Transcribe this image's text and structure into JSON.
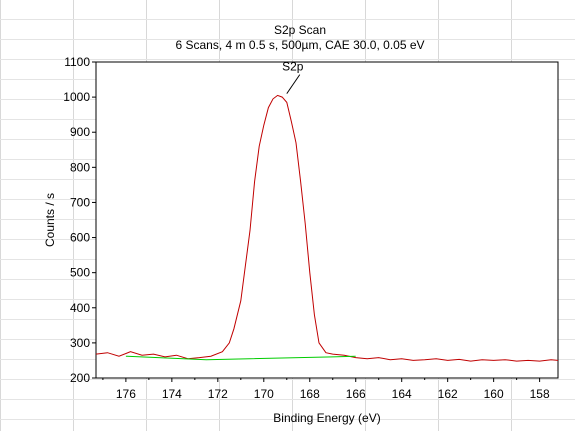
{
  "chart_data": {
    "type": "line",
    "title": "S2p Scan",
    "subtitle": "6 Scans,  4 m 0.5 s,  500µm,  CAE 30.0,  0.05 eV",
    "xlabel": "Binding Energy (eV)",
    "ylabel": "Counts / s",
    "xlim": [
      177.3,
      157.2
    ],
    "ylim": [
      200,
      1100
    ],
    "x_reversed": true,
    "grid": false,
    "xticks": [
      176,
      174,
      172,
      170,
      168,
      166,
      164,
      162,
      160,
      158
    ],
    "yticks": [
      200,
      300,
      400,
      500,
      600,
      700,
      800,
      900,
      1000,
      1100
    ],
    "peak_annotation": {
      "label": "S2p",
      "x": 169.0,
      "y": 1010
    },
    "series": [
      {
        "color": "#c00000",
        "x": [
          177.3,
          176.8,
          176.3,
          175.8,
          175.3,
          174.8,
          174.3,
          173.8,
          173.3,
          172.8,
          172.3,
          171.8,
          171.5,
          171.3,
          171.0,
          170.8,
          170.6,
          170.4,
          170.2,
          170.0,
          169.8,
          169.6,
          169.4,
          169.2,
          169.0,
          168.8,
          168.6,
          168.4,
          168.2,
          168.0,
          167.8,
          167.6,
          167.3,
          167.0,
          166.5,
          166.0,
          165.5,
          165.0,
          164.5,
          164.0,
          163.5,
          163.0,
          162.5,
          162.0,
          161.5,
          161.0,
          160.5,
          160.0,
          159.5,
          159.0,
          158.5,
          158.0,
          157.5,
          157.2
        ],
        "values": [
          268,
          272,
          262,
          275,
          265,
          268,
          260,
          265,
          255,
          258,
          262,
          275,
          300,
          340,
          420,
          520,
          620,
          760,
          860,
          920,
          970,
          995,
          1005,
          1000,
          985,
          930,
          870,
          760,
          640,
          500,
          380,
          300,
          272,
          268,
          265,
          258,
          255,
          258,
          252,
          255,
          250,
          252,
          255,
          250,
          253,
          248,
          252,
          250,
          252,
          248,
          250,
          248,
          252,
          250
        ]
      },
      {
        "color": "#00cc00",
        "x": [
          176.0,
          172.5,
          167.0,
          166.0
        ],
        "values": [
          262,
          252,
          260,
          262
        ]
      }
    ]
  }
}
